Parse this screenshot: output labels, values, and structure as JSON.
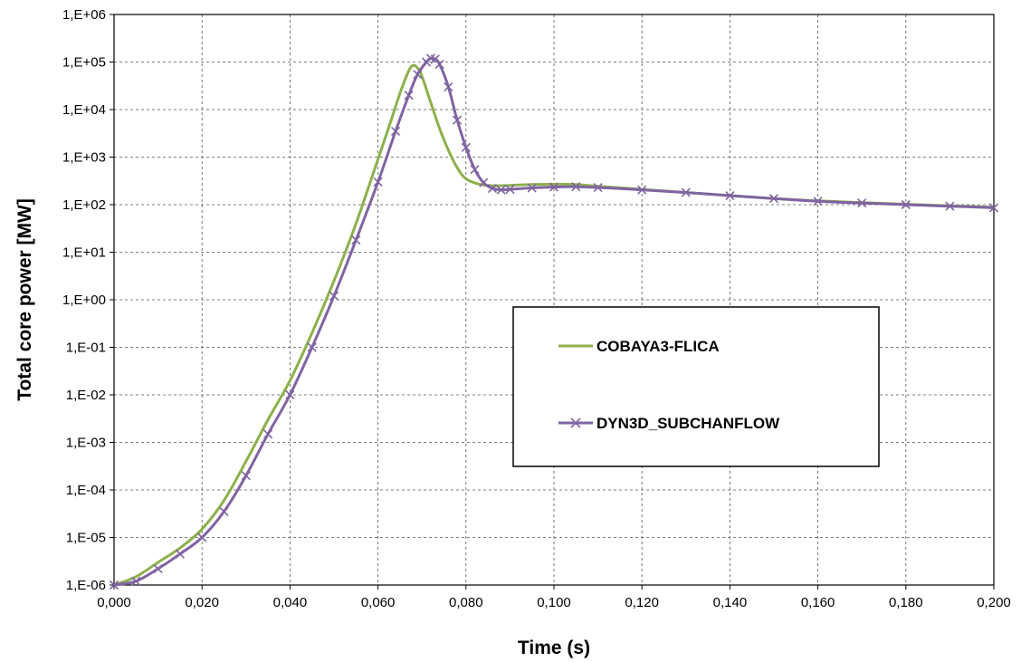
{
  "chart_data": {
    "type": "line",
    "title": "",
    "xlabel": "Time (s)",
    "ylabel": "Total core power [MW]",
    "xlim": [
      0,
      0.2
    ],
    "ylim": [
      1e-06,
      1000000.0
    ],
    "yscale": "log",
    "grid": true,
    "legend_position": "center-right",
    "x_ticks": [
      "0,000",
      "0,020",
      "0,040",
      "0,060",
      "0,080",
      "0,100",
      "0,120",
      "0,140",
      "0,160",
      "0,180",
      "0,200"
    ],
    "y_ticks": [
      "1,E+06",
      "1,E+05",
      "1,E+04",
      "1,E+03",
      "1,E+02",
      "1,E+01",
      "1,E+00",
      "1,E-01",
      "1,E-02",
      "1,E-03",
      "1,E-04",
      "1,E-05",
      "1,E-06"
    ],
    "series": [
      {
        "name": "COBAYA3-FLICA",
        "color": "#8db04c",
        "marker": "none",
        "x": [
          0.0,
          0.005,
          0.01,
          0.015,
          0.02,
          0.025,
          0.03,
          0.035,
          0.04,
          0.045,
          0.05,
          0.055,
          0.06,
          0.063,
          0.065,
          0.067,
          0.068,
          0.069,
          0.07,
          0.072,
          0.074,
          0.076,
          0.078,
          0.08,
          0.083,
          0.086,
          0.09,
          0.095,
          0.1,
          0.105,
          0.11,
          0.12,
          0.13,
          0.14,
          0.15,
          0.16,
          0.17,
          0.18,
          0.19,
          0.2
        ],
        "y": [
          1e-06,
          1.5e-06,
          3e-06,
          6e-06,
          1.5e-05,
          6e-05,
          0.0004,
          0.003,
          0.02,
          0.2,
          2.5,
          40,
          900,
          6000,
          22000,
          65000,
          85000,
          75000,
          50000,
          14000,
          4000,
          1400,
          600,
          350,
          270,
          250,
          255,
          265,
          270,
          265,
          245,
          210,
          180,
          155,
          135,
          120,
          110,
          102,
          95,
          88
        ]
      },
      {
        "name": "DYN3D_SUBCHANFLOW",
        "color": "#8064a2",
        "marker": "x",
        "x": [
          0.0,
          0.005,
          0.01,
          0.015,
          0.02,
          0.025,
          0.03,
          0.035,
          0.04,
          0.045,
          0.05,
          0.055,
          0.06,
          0.064,
          0.067,
          0.069,
          0.071,
          0.072,
          0.073,
          0.074,
          0.076,
          0.078,
          0.08,
          0.082,
          0.084,
          0.086,
          0.088,
          0.09,
          0.095,
          0.1,
          0.105,
          0.11,
          0.12,
          0.13,
          0.14,
          0.15,
          0.16,
          0.17,
          0.18,
          0.19,
          0.2
        ],
        "y": [
          1e-06,
          1.2e-06,
          2.2e-06,
          4.5e-06,
          1e-05,
          3.5e-05,
          0.0002,
          0.0015,
          0.01,
          0.1,
          1.2,
          18,
          300,
          3500,
          20000,
          55000,
          100000,
          120000,
          115000,
          90000,
          30000,
          6000,
          1600,
          550,
          290,
          220,
          205,
          210,
          225,
          235,
          238,
          230,
          205,
          180,
          155,
          135,
          118,
          108,
          100,
          93,
          86
        ]
      }
    ]
  }
}
